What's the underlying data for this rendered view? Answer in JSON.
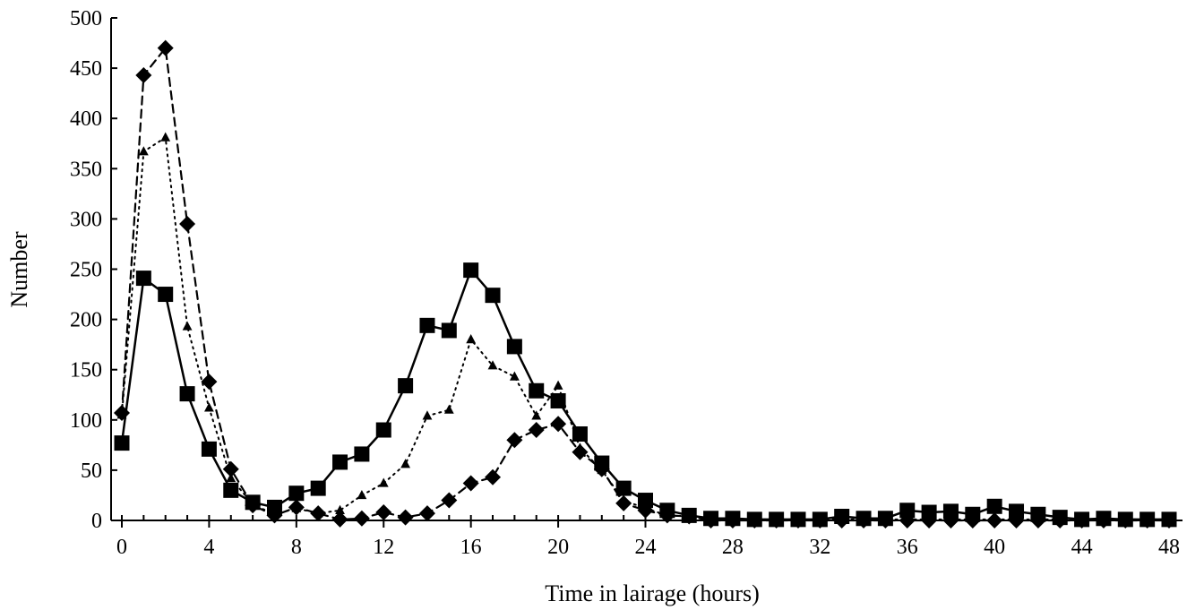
{
  "chart_data": {
    "type": "line",
    "xlabel": "Time in lairage (hours)",
    "ylabel": "Number",
    "xlim": [
      0,
      48
    ],
    "ylim": [
      0,
      500
    ],
    "xticks": [
      0,
      4,
      8,
      12,
      16,
      20,
      24,
      28,
      32,
      36,
      40,
      44,
      48
    ],
    "yticks": [
      0,
      50,
      100,
      150,
      200,
      250,
      300,
      350,
      400,
      450,
      500
    ],
    "x_tick_labels": [
      "0",
      "4",
      "8",
      "12",
      "16",
      "20",
      "24",
      "28",
      "32",
      "36",
      "40",
      "44",
      "48"
    ],
    "y_tick_labels": [
      "0",
      "50",
      "100",
      "150",
      "200",
      "250",
      "300",
      "350",
      "400",
      "450",
      "500"
    ],
    "grid": false,
    "legend": "none",
    "x": [
      0,
      1,
      2,
      3,
      4,
      5,
      6,
      7,
      8,
      9,
      10,
      11,
      12,
      13,
      14,
      15,
      16,
      17,
      18,
      19,
      20,
      21,
      22,
      23,
      24,
      25,
      26,
      27,
      28,
      29,
      30,
      31,
      32,
      33,
      34,
      35,
      36,
      37,
      38,
      39,
      40,
      41,
      42,
      43,
      44,
      45,
      46,
      47,
      48
    ],
    "series": [
      {
        "marker": "square",
        "line_style": "solid",
        "color": "#000000",
        "values": [
          77,
          241,
          225,
          126,
          71,
          30,
          18,
          13,
          27,
          32,
          58,
          66,
          90,
          134,
          194,
          189,
          249,
          224,
          173,
          129,
          119,
          86,
          57,
          32,
          20,
          10,
          5,
          2,
          2,
          1,
          1,
          1,
          1,
          4,
          2,
          2,
          10,
          8,
          9,
          6,
          14,
          9,
          6,
          3,
          1,
          2,
          1,
          1,
          1
        ]
      },
      {
        "marker": "triangle",
        "line_style": "dotted",
        "color": "#000000",
        "values": [
          105,
          367,
          381,
          193,
          112,
          42,
          16,
          6,
          12,
          7,
          10,
          25,
          37,
          56,
          104,
          110,
          180,
          154,
          143,
          104,
          134,
          72,
          50,
          20,
          12,
          5,
          4,
          2,
          1,
          1,
          1,
          1,
          1,
          1,
          1,
          1,
          1,
          1,
          1,
          1,
          1,
          1,
          1,
          1,
          1,
          1,
          1,
          1,
          1
        ]
      },
      {
        "marker": "diamond",
        "line_style": "dashed",
        "color": "#000000",
        "values": [
          107,
          443,
          470,
          295,
          138,
          51,
          15,
          5,
          13,
          7,
          1,
          2,
          8,
          3,
          7,
          20,
          37,
          43,
          80,
          90,
          96,
          68,
          51,
          17,
          10,
          5,
          4,
          0,
          0,
          0,
          0,
          0,
          0,
          0,
          0,
          0,
          0,
          0,
          0,
          0,
          0,
          0,
          0,
          0,
          0,
          0,
          0,
          0,
          0
        ]
      }
    ]
  }
}
